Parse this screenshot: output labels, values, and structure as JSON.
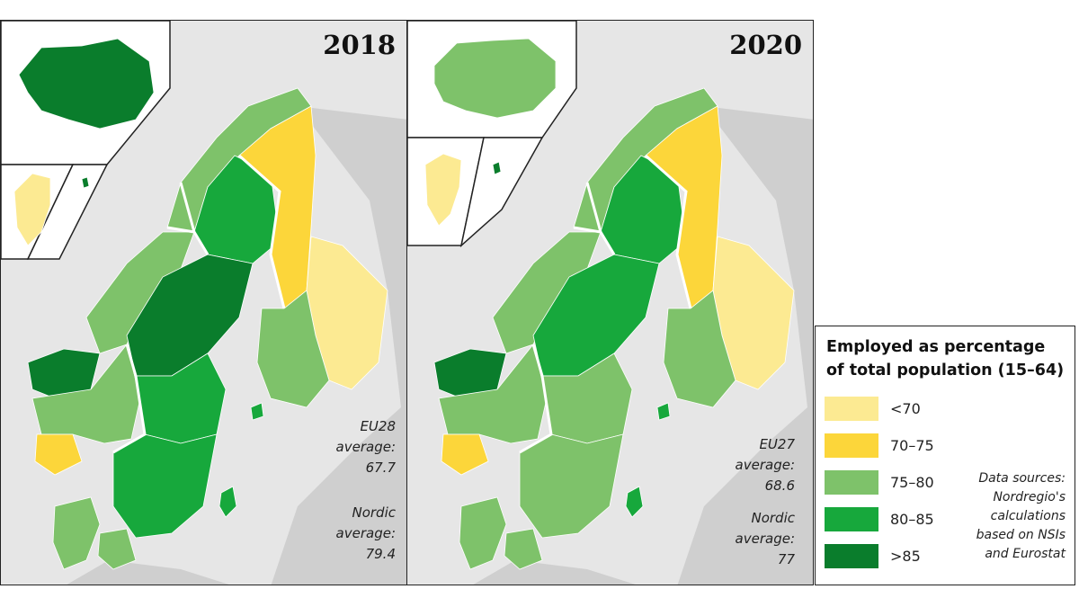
{
  "colors": {
    "sea": "#e6e6e6",
    "neighbour_land": "#cfcfcf",
    "border": "#ffffff",
    "lt70": "#fcea92",
    "70_75": "#fcd63a",
    "75_80": "#7ec26a",
    "80_85": "#17a83c",
    "gt85": "#0a7d2c"
  },
  "maps": [
    {
      "year": "2018",
      "eu_average_label": "EU28",
      "average_word": "average:",
      "eu_average_value": "67.7",
      "nordic_average_label": "Nordic",
      "nordic_average_value": "79.4",
      "regions": {
        "iceland": "gt85",
        "greenland": "lt70",
        "faroe": "gt85",
        "norway_north": "75_80",
        "norway_mid": "75_80",
        "norway_west": "gt85",
        "norway_south": "75_80",
        "norway_southwest": "70_75",
        "sweden_north": "80_85",
        "sweden_mid": "gt85",
        "sweden_central": "80_85",
        "sweden_south": "80_85",
        "finland_north": "70_75",
        "finland_east": "lt70",
        "finland_west": "75_80",
        "denmark": "75_80",
        "aland": "80_85"
      }
    },
    {
      "year": "2020",
      "eu_average_label": "EU27",
      "average_word": "average:",
      "eu_average_value": "68.6",
      "nordic_average_label": "Nordic",
      "nordic_average_value": "77",
      "regions": {
        "iceland": "75_80",
        "greenland": "lt70",
        "faroe": "gt85",
        "norway_north": "75_80",
        "norway_mid": "75_80",
        "norway_west": "gt85",
        "norway_south": "75_80",
        "norway_southwest": "70_75",
        "sweden_north": "80_85",
        "sweden_mid": "80_85",
        "sweden_central": "75_80",
        "sweden_south": "75_80",
        "finland_north": "70_75",
        "finland_east": "lt70",
        "finland_west": "75_80",
        "denmark": "75_80",
        "aland": "80_85"
      }
    }
  ],
  "legend": {
    "title_line1": "Employed as percentage",
    "title_line2": "of total population (15–64)",
    "items": [
      {
        "key": "lt70",
        "label": "<70"
      },
      {
        "key": "70_75",
        "label": "70–75"
      },
      {
        "key": "75_80",
        "label": "75–80"
      },
      {
        "key": "80_85",
        "label": "80–85"
      },
      {
        "key": "gt85",
        "label": ">85"
      }
    ],
    "sources": [
      "Data sources:",
      "Nordregio's",
      "calculations",
      "based on NSIs",
      "and Eurostat"
    ]
  }
}
